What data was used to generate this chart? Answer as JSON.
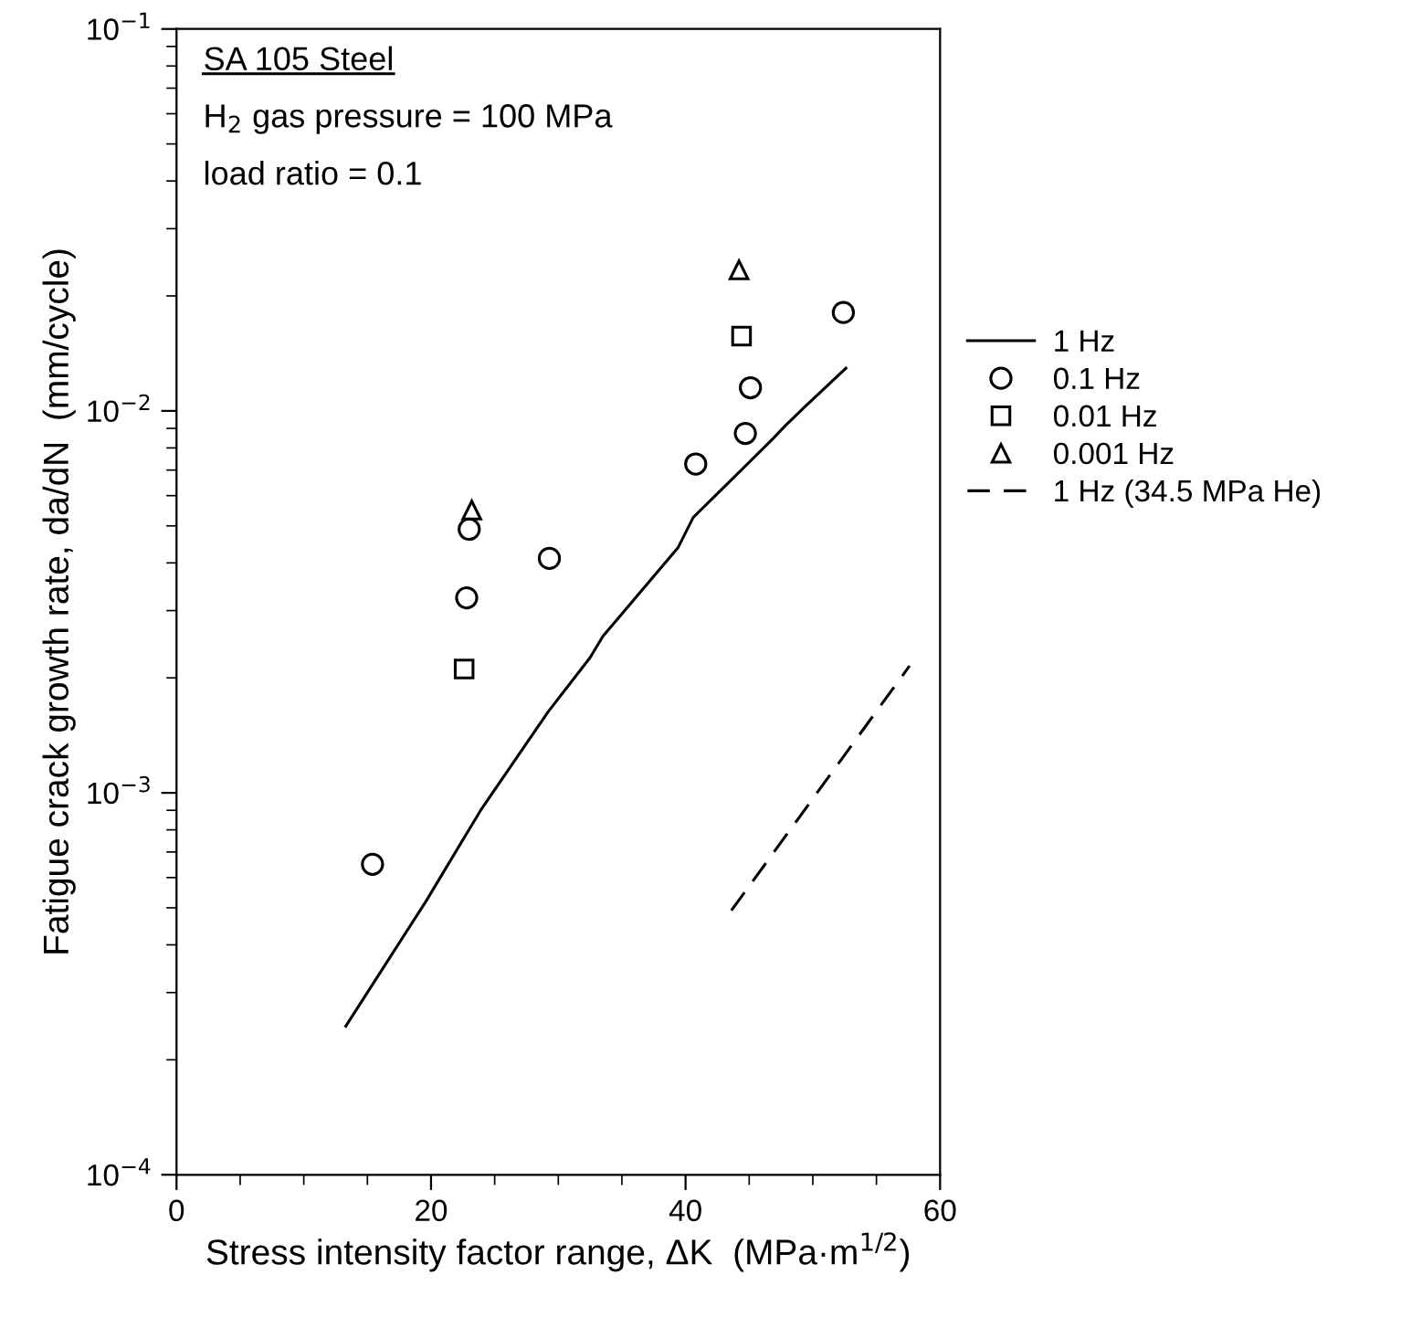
{
  "chart_data": {
    "type": "scatter",
    "xlabel": "Stress intensity factor range, ΔK  (MPa·m$^{1/2}$)",
    "ylabel": "Fatigue crack growth rate, da/dN  (mm/cycle)",
    "annotations": [
      "SA 105 Steel",
      "H$_{2}$ gas pressure = 100 MPa",
      "load ratio = 0.1"
    ],
    "series": [
      {
        "name": "1 Hz",
        "type": "line",
        "line_style": "solid",
        "marker": "none",
        "color": "#000000",
        "x": [
          13.3,
          19.6,
          23.9,
          29.2,
          32.5,
          33.5,
          39.4,
          40.6,
          44.0,
          46.9,
          47.8,
          49.3,
          52.6
        ],
        "values": [
          0.000245,
          0.00052,
          0.0009,
          0.00163,
          0.00226,
          0.00257,
          0.00438,
          0.00526,
          0.0068,
          0.00848,
          0.00912,
          0.0102,
          0.01294
        ]
      },
      {
        "name": "0.1 Hz",
        "marker": "circle",
        "color": "#000000",
        "x": [
          15.4,
          22.8,
          23.0,
          29.3,
          40.8,
          44.7,
          45.1,
          52.4
        ],
        "values": [
          0.00065,
          0.00324,
          0.0049,
          0.00411,
          0.00726,
          0.00873,
          0.0115,
          0.0181
        ]
      },
      {
        "name": "0.01 Hz",
        "marker": "square",
        "color": "#000000",
        "x": [
          22.6,
          44.4
        ],
        "values": [
          0.00211,
          0.0157
        ]
      },
      {
        "name": "0.001 Hz",
        "marker": "triangle",
        "color": "#000000",
        "x": [
          23.2,
          44.2
        ],
        "values": [
          0.0055,
          0.0234
        ]
      },
      {
        "name": "1 Hz (34.5 MPa He)",
        "type": "line",
        "line_style": "dashed",
        "marker": "none",
        "color": "#000000",
        "x": [
          43.6,
          57.6
        ],
        "values": [
          0.000492,
          0.00215
        ]
      }
    ],
    "log": "y",
    "xlim": [
      0,
      60
    ],
    "xticks": [
      0,
      20,
      40,
      60
    ],
    "ylim": [
      0.0001,
      0.1
    ],
    "yticks": [
      {
        "value": 0.0001,
        "label": "10$^{−4}$"
      },
      {
        "value": 0.001,
        "label": "10$^{−3}$"
      },
      {
        "value": 0.01,
        "label": "10$^{−2}$"
      },
      {
        "value": 0.1,
        "label": "10$^{−1}$"
      }
    ],
    "grid": false,
    "legend": "right"
  }
}
